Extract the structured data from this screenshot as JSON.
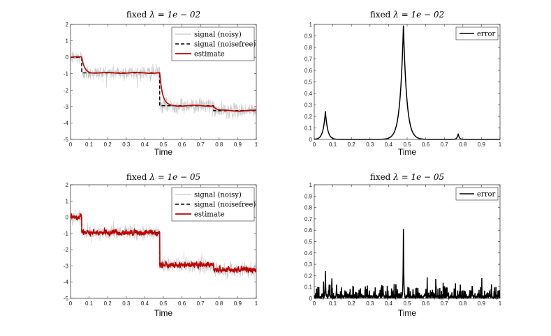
{
  "chart_data": [
    {
      "type": "line",
      "title_prefix": "fixed",
      "title_math": "λ = 1e − 02",
      "xlabel": "Time",
      "ylabel": "",
      "xlim": [
        0,
        1
      ],
      "ylim": [
        -5,
        2
      ],
      "xticks": [
        "0",
        "0.1",
        "0.2",
        "0.3",
        "0.4",
        "0.5",
        "0.6",
        "0.7",
        "0.8",
        "0.9",
        "1"
      ],
      "yticks": [
        "2",
        "1",
        "0",
        "-1",
        "-2",
        "-3",
        "-4",
        "-5"
      ],
      "legend": [
        "signal (noisy)",
        "signal (noisefree)",
        "estimate"
      ],
      "legend_position": "top-right",
      "colors": {
        "noisy": "#c8c8c8",
        "noisefree": "#000000",
        "estimate": "#c00000"
      },
      "noise_amplitude": 0.22,
      "noisefree_steps": [
        {
          "x0": 0.0,
          "x1": 0.06,
          "y": 0.0
        },
        {
          "x0": 0.06,
          "x1": 0.48,
          "y": -0.95
        },
        {
          "x0": 0.48,
          "x1": 0.77,
          "y": -2.95
        },
        {
          "x0": 0.77,
          "x1": 1.0,
          "y": -3.25
        }
      ],
      "estimate_mode": "smooth",
      "estimate_smoothing": 0.015
    },
    {
      "type": "line",
      "title_prefix": "fixed",
      "title_math": "λ = 1e − 02",
      "xlabel": "Time",
      "xlim": [
        0,
        1
      ],
      "ylim": [
        0,
        1
      ],
      "xticks": [
        "0",
        "0.1",
        "0.2",
        "0.3",
        "0.4",
        "0.5",
        "0.6",
        "0.7",
        "0.8",
        "0.9",
        "1"
      ],
      "yticks": [
        "1",
        "0.9",
        "0.8",
        "0.7",
        "0.6",
        "0.5",
        "0.4",
        "0.3",
        "0.2",
        "0.1",
        "0"
      ],
      "legend": [
        "error"
      ],
      "legend_position": "top-right",
      "colors": {
        "error": "#000000"
      },
      "error_peaks": [
        {
          "x": 0.06,
          "height": 0.245,
          "width": 0.012
        },
        {
          "x": 0.48,
          "height": 0.99,
          "width": 0.018
        },
        {
          "x": 0.775,
          "height": 0.05,
          "width": 0.006
        }
      ],
      "error_noise": 0.0
    },
    {
      "type": "line",
      "title_prefix": "fixed",
      "title_math": "λ = 1e − 05",
      "xlabel": "Time",
      "xlim": [
        0,
        1
      ],
      "ylim": [
        -5,
        2
      ],
      "xticks": [
        "0",
        "0.1",
        "0.2",
        "0.3",
        "0.4",
        "0.5",
        "0.6",
        "0.7",
        "0.8",
        "0.9",
        "1"
      ],
      "yticks": [
        "2",
        "1",
        "0",
        "-1",
        "-2",
        "-3",
        "-4",
        "-5"
      ],
      "legend": [
        "signal (noisy)",
        "signal (noisefree)",
        "estimate"
      ],
      "legend_position": "top-right",
      "colors": {
        "noisy": "#c8c8c8",
        "noisefree": "#000000",
        "estimate": "#c00000"
      },
      "noise_amplitude": 0.22,
      "noisefree_steps": [
        {
          "x0": 0.0,
          "x1": 0.06,
          "y": 0.0
        },
        {
          "x0": 0.06,
          "x1": 0.48,
          "y": -0.95
        },
        {
          "x0": 0.48,
          "x1": 0.77,
          "y": -2.95
        },
        {
          "x0": 0.77,
          "x1": 1.0,
          "y": -3.25
        }
      ],
      "estimate_mode": "rough",
      "estimate_smoothing": 0.003
    },
    {
      "type": "line",
      "title_prefix": "fixed",
      "title_math": "λ = 1e − 05",
      "xlabel": "Time",
      "xlim": [
        0,
        1
      ],
      "ylim": [
        0,
        1
      ],
      "xticks": [
        "0",
        "0.1",
        "0.2",
        "0.3",
        "0.4",
        "0.5",
        "0.6",
        "0.7",
        "0.8",
        "0.9",
        "1"
      ],
      "yticks": [
        "1",
        "0.9",
        "0.8",
        "0.7",
        "0.6",
        "0.5",
        "0.4",
        "0.3",
        "0.2",
        "0.1",
        "0"
      ],
      "legend": [
        "error"
      ],
      "legend_position": "top-right",
      "colors": {
        "error": "#000000"
      },
      "error_peaks": [
        {
          "x": 0.06,
          "height": 0.24,
          "width": 0.002
        },
        {
          "x": 0.48,
          "height": 0.61,
          "width": 0.002
        },
        {
          "x": 0.85,
          "height": 0.11,
          "width": 0.002
        },
        {
          "x": 0.08,
          "height": 0.12,
          "width": 0.002
        },
        {
          "x": 0.12,
          "height": 0.12,
          "width": 0.002
        },
        {
          "x": 0.37,
          "height": 0.11,
          "width": 0.002
        }
      ],
      "error_noise": 0.05
    }
  ]
}
